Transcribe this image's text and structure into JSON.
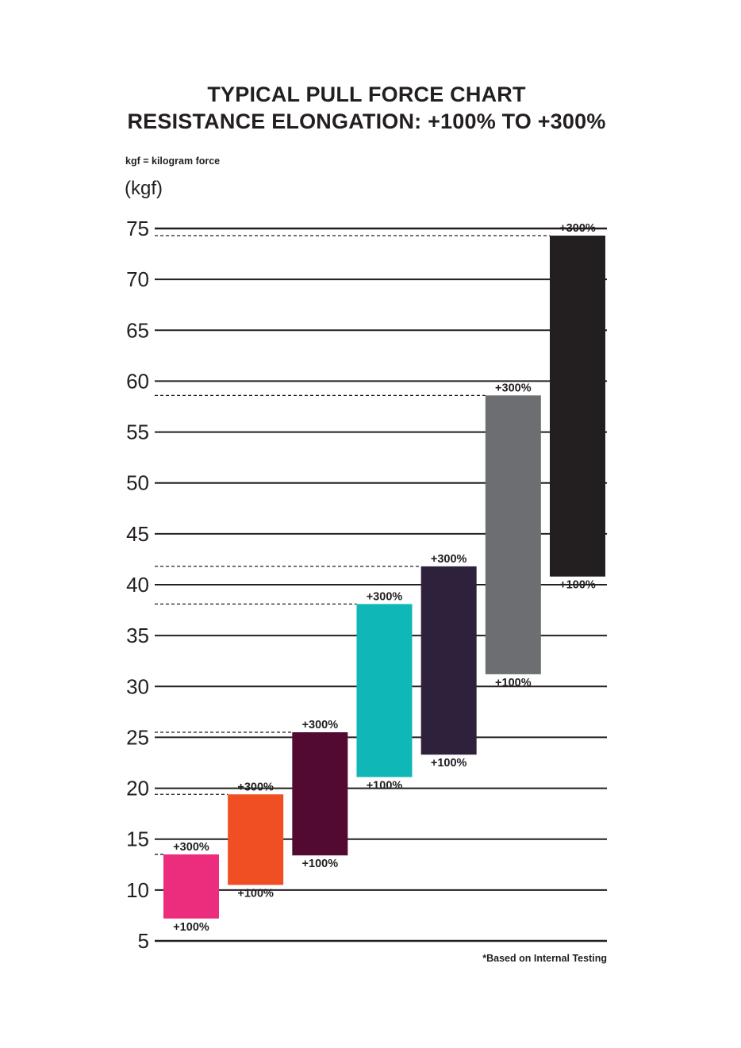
{
  "header": {
    "title_line1": "TYPICAL PULL FORCE CHART",
    "title_line2": "RESISTANCE ELONGATION: +100% TO +300%",
    "unit_note": "kgf = kilogram force",
    "y_unit": "(kgf)"
  },
  "footer": {
    "note": "*Based on Internal Testing"
  },
  "chart_data": {
    "type": "bar",
    "subtype": "floating-range",
    "title": "TYPICAL PULL FORCE CHART",
    "subtitle": "RESISTANCE ELONGATION: +100% TO +300%",
    "ylabel": "(kgf)",
    "ylim": [
      5,
      75
    ],
    "yticks": [
      5,
      10,
      15,
      20,
      25,
      30,
      35,
      40,
      45,
      50,
      55,
      60,
      65,
      70,
      75
    ],
    "grid": true,
    "low_label": "+100%",
    "high_label": "+300%",
    "bars": [
      {
        "low": 7.2,
        "high": 13.5,
        "color": "#ec2c7d"
      },
      {
        "low": 10.5,
        "high": 19.4,
        "color": "#f04e23"
      },
      {
        "low": 13.4,
        "high": 25.5,
        "color": "#520a32"
      },
      {
        "low": 21.1,
        "high": 38.1,
        "color": "#0fb8b6"
      },
      {
        "low": 23.3,
        "high": 41.8,
        "color": "#2e213b"
      },
      {
        "low": 31.2,
        "high": 58.6,
        "color": "#6d6e71"
      },
      {
        "low": 40.8,
        "high": 74.3,
        "color": "#231f20"
      }
    ]
  }
}
